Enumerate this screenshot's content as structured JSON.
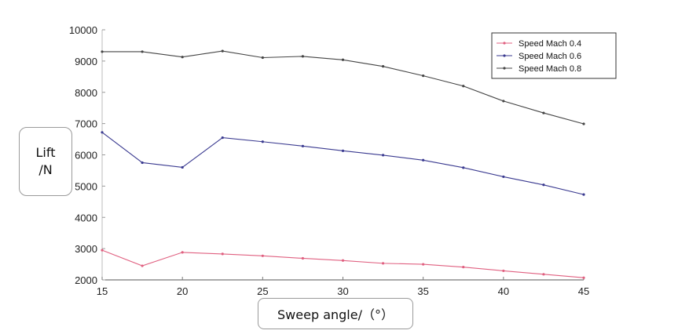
{
  "chart_data": {
    "type": "line",
    "xlabel": "Sweep angle/（°）",
    "ylabel_line1": "Lift",
    "ylabel_line2": "/N",
    "xlim": [
      15,
      45
    ],
    "ylim": [
      2000,
      10000
    ],
    "xticks": [
      15,
      20,
      25,
      30,
      35,
      40,
      45
    ],
    "yticks": [
      2000,
      3000,
      4000,
      5000,
      6000,
      7000,
      8000,
      9000,
      10000
    ],
    "legend_position": "top-right",
    "x": [
      15,
      17.5,
      20,
      22.5,
      25,
      27.5,
      30,
      32.5,
      35,
      37.5,
      40,
      42.5,
      45
    ],
    "series": [
      {
        "name": "Speed Mach 0.4",
        "color": "#e06080",
        "values": [
          2950,
          2450,
          2880,
          2830,
          2770,
          2690,
          2620,
          2530,
          2500,
          2410,
          2290,
          2180,
          2070
        ]
      },
      {
        "name": "Speed Mach 0.6",
        "color": "#3a3a90",
        "values": [
          6720,
          5750,
          5600,
          6550,
          6420,
          6280,
          6130,
          5990,
          5830,
          5590,
          5300,
          5040,
          4730
        ]
      },
      {
        "name": "Speed Mach 0.8",
        "color": "#444444",
        "values": [
          9300,
          9300,
          9130,
          9320,
          9110,
          9150,
          9040,
          8830,
          8530,
          8200,
          7720,
          7340,
          6990
        ]
      }
    ]
  }
}
